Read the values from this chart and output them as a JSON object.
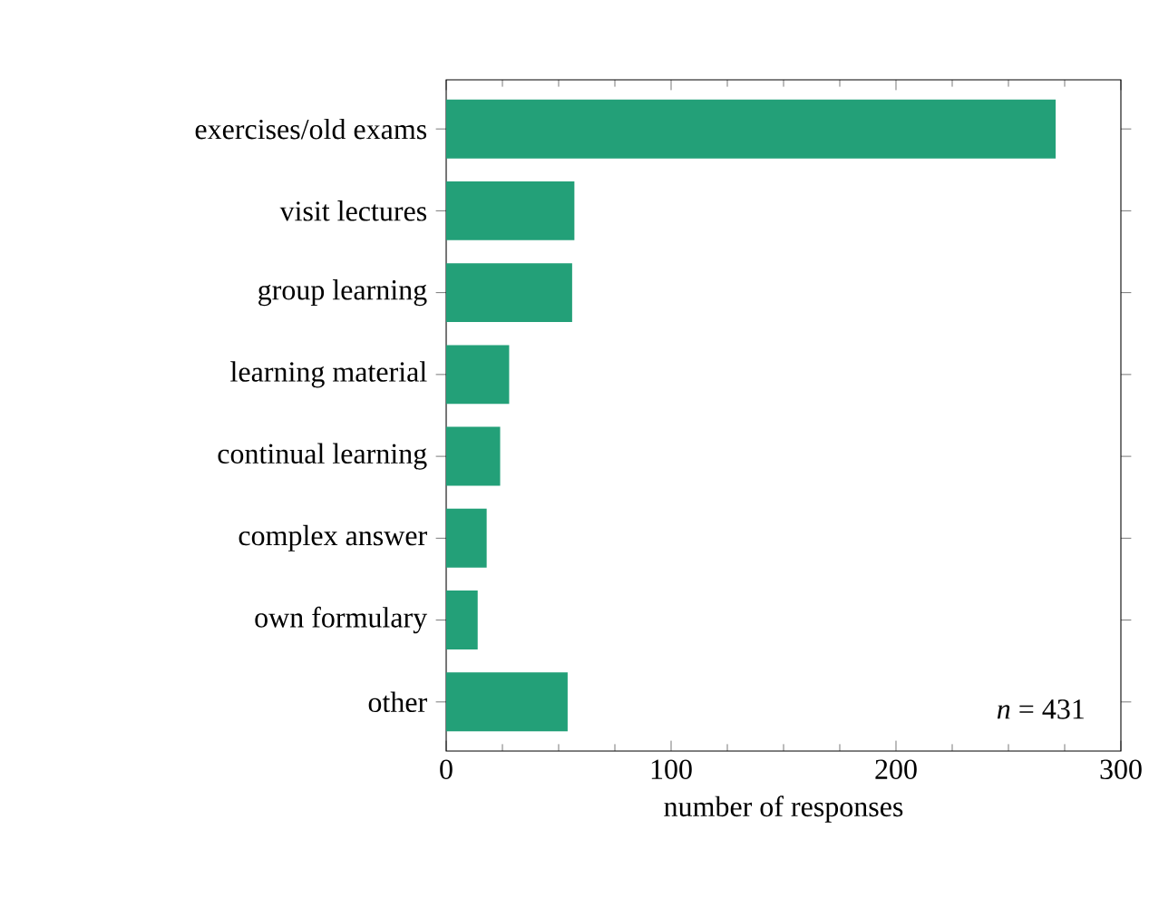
{
  "chart_data": {
    "type": "bar",
    "orientation": "horizontal",
    "xlabel": "number of responses",
    "categories": [
      "exercises/old exams",
      "visit lectures",
      "group learning",
      "learning material",
      "continual learning",
      "complex answer",
      "own formulary",
      "other"
    ],
    "values": [
      271,
      57,
      56,
      28,
      24,
      18,
      14,
      54
    ],
    "color": "#23a078",
    "xlim": [
      0,
      300
    ],
    "xticks": [
      0,
      100,
      200,
      300
    ],
    "annotations": [
      "*n* = 431"
    ]
  }
}
